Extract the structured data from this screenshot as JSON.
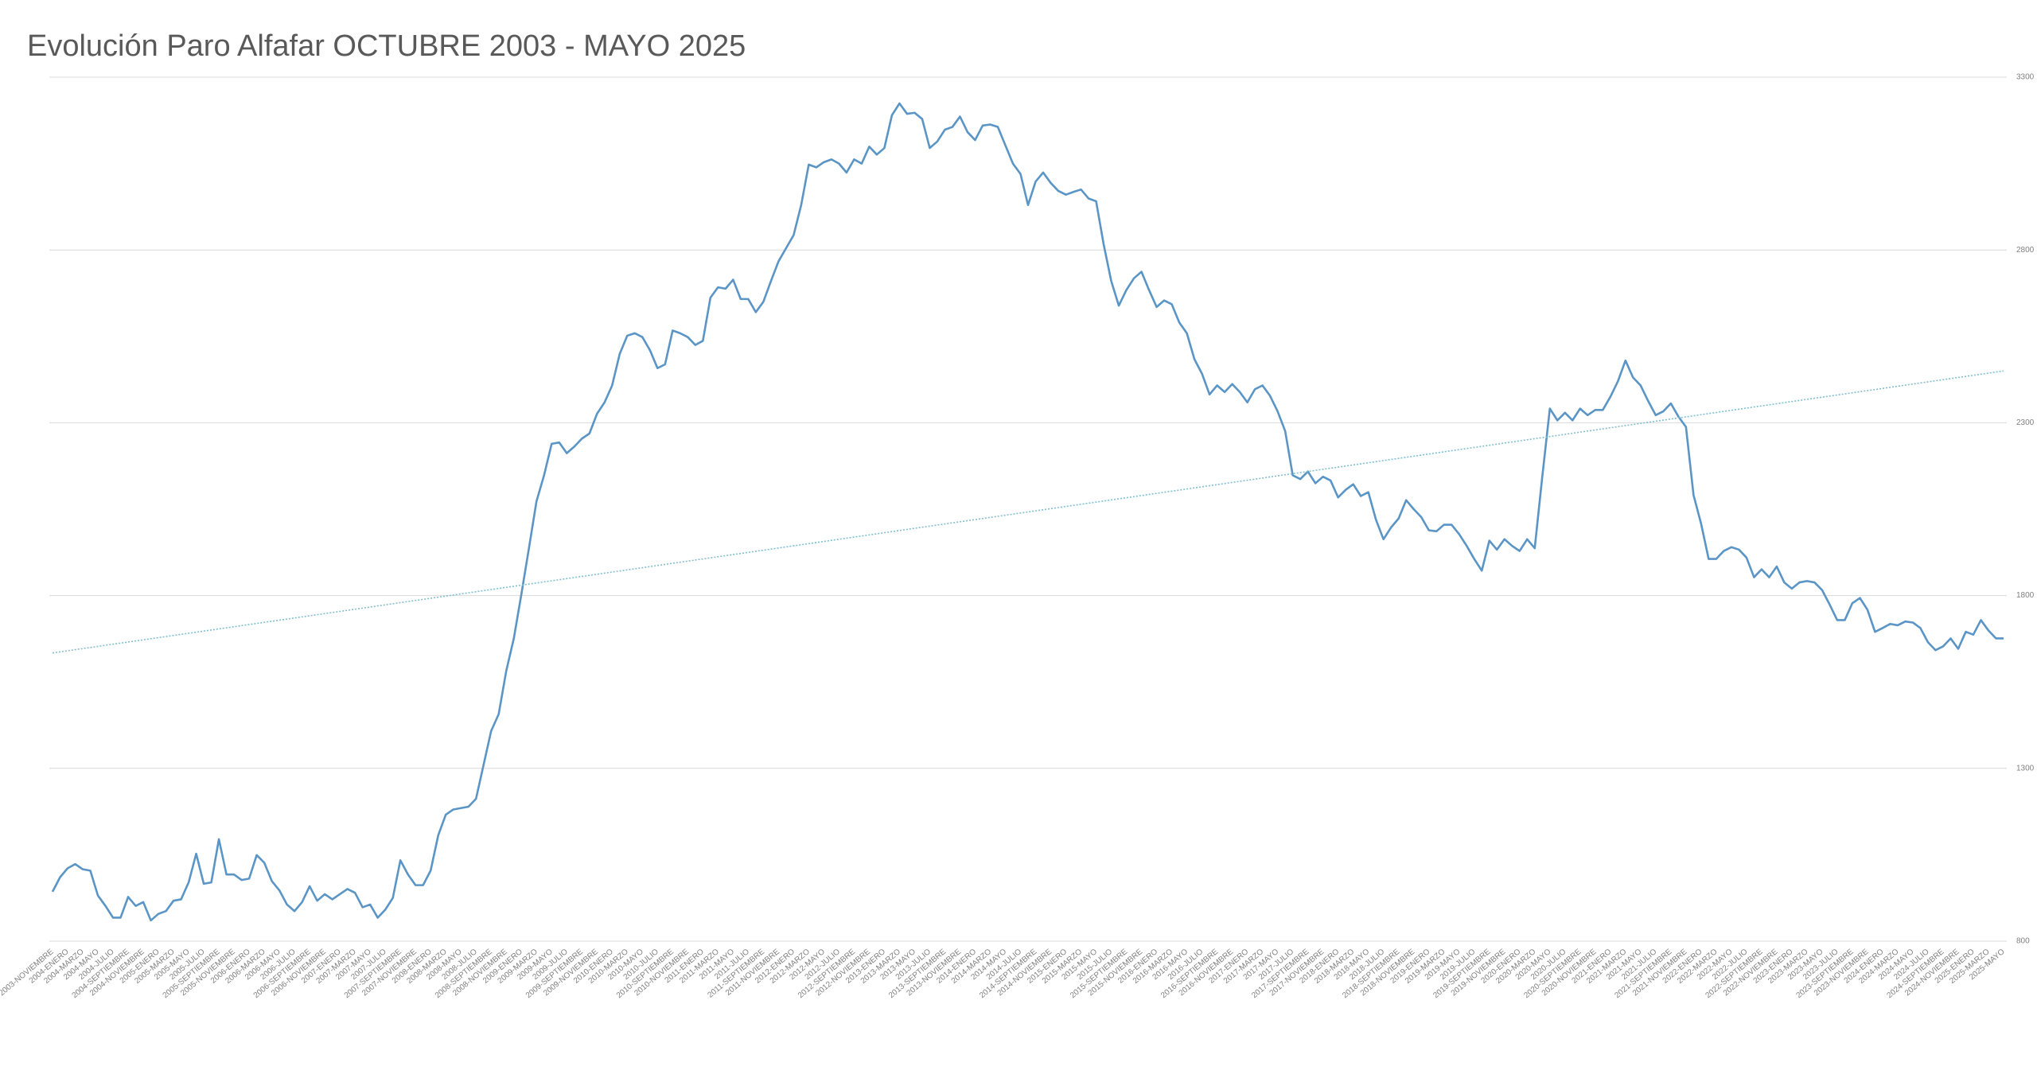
{
  "chart_data": {
    "type": "line",
    "title": "Evolución Paro Alfafar OCTUBRE 2003 - MAYO 2025",
    "categories": [
      "2003-NOVIEMBRE",
      null,
      "2004-ENERO",
      null,
      "2004-MARZO",
      null,
      "2004-MAYO",
      null,
      "2004-JULIO",
      null,
      "2004-SEPTIEMBRE",
      null,
      "2004-NOVIEMBRE",
      null,
      "2005-ENERO",
      null,
      "2005-MARZO",
      null,
      "2005-MAYO",
      null,
      "2005-JULIO",
      null,
      "2005-SEPTIEMBRE",
      null,
      "2005-NOVIEMBRE",
      null,
      "2006-ENERO",
      null,
      "2006-MARZO",
      null,
      "2006-MAYO",
      null,
      "2006-JULIO",
      null,
      "2006-SEPTIEMBRE",
      null,
      "2006-NOVIEMBRE",
      null,
      "2007-ENERO",
      null,
      "2007-MARZO",
      null,
      "2007-MAYO",
      null,
      "2007-JULIO",
      null,
      "2007-SEPTIEMBRE",
      null,
      "2007-NOVIEMBRE",
      null,
      "2008-ENERO",
      null,
      "2008-MARZO",
      null,
      "2008-MAYO",
      null,
      "2008-JULIO",
      null,
      "2008-SEPTIEMBRE",
      null,
      "2008-NOVIEMBRE",
      null,
      "2009-ENERO",
      null,
      "2009-MARZO",
      null,
      "2009-MAYO",
      null,
      "2009-JULIO",
      null,
      "2009-SEPTIEMBRE",
      null,
      "2009-NOVIEMBRE",
      null,
      "2010-ENERO",
      null,
      "2010-MARZO",
      null,
      "2010-MAYO",
      null,
      "2010-JULIO",
      null,
      "2010-SEPTIEMBRE",
      null,
      "2010-NOVIEMBRE",
      null,
      "2011-ENERO",
      null,
      "2011-MARZO",
      null,
      "2011-MAYO",
      null,
      "2011-JULIO",
      null,
      "2011-SEPTIEMBRE",
      null,
      "2011-NOVIEMBRE",
      null,
      "2012-ENERO",
      null,
      "2012-MARZO",
      null,
      "2012-MAYO",
      null,
      "2012-JULIO",
      null,
      "2012-SEPTIEMBRE",
      null,
      "2012-NOVIEMBRE",
      null,
      "2013-ENERO",
      null,
      "2013-MARZO",
      null,
      "2013-MAYO",
      null,
      "2013-JULIO",
      null,
      "2013-SEPTIEMBRE",
      null,
      "2013-NOVIEMBRE",
      null,
      "2014-ENERO",
      null,
      "2014-MARZO",
      null,
      "2014-MAYO",
      null,
      "2014-JULIO",
      null,
      "2014-SEPTIEMBRE",
      null,
      "2014-NOVIEMBRE",
      null,
      "2015-ENERO",
      null,
      "2015-MARZO",
      null,
      "2015-MAYO",
      null,
      "2015-JULIO",
      null,
      "2015-SEPTIEMBRE",
      null,
      "2015-NOVIEMBRE",
      null,
      "2016-ENERO",
      null,
      "2016-MARZO",
      null,
      "2016-MAYO",
      null,
      "2016-JULIO",
      null,
      "2016-SEPTIEMBRE",
      null,
      "2016-NOVIEMBRE",
      null,
      "2017-ENERO",
      null,
      "2017-MARZO",
      null,
      "2017-MAYO",
      null,
      "2017-JULIO",
      null,
      "2017-SEPTIEMBRE",
      null,
      "2017-NOVIEMBRE",
      null,
      "2018-ENERO",
      null,
      "2018-MARZO",
      null,
      "2018-MAYO",
      null,
      "2018-JULIO",
      null,
      "2018-SEPTIEMBRE",
      null,
      "2018-NOVIEMBRE",
      null,
      "2019-ENERO",
      null,
      "2019-MARZO",
      null,
      "2019-MAYO",
      null,
      "2019-JULIO",
      null,
      "2019-SEPTIEMBRE",
      null,
      "2019-NOVIEMBRE",
      null,
      "2020-ENERO",
      null,
      "2020-MARZO",
      null,
      "2020-MAYO",
      null,
      "2020-JULIO",
      null,
      "2020-SEPTIEMBRE",
      null,
      "2020-NOVIEMBRE",
      null,
      "2021-ENERO",
      null,
      "2021-MARZO",
      null,
      "2021-MAYO",
      null,
      "2021-JULIO",
      null,
      "2021-SEPTIEMBRE",
      null,
      "2021-NOVIEMBRE",
      null,
      "2022-ENERO",
      null,
      "2022-MARZO",
      null,
      "2022-MAYO",
      null,
      "2022-JULIO",
      null,
      "2022-SEPTIEMBRE",
      null,
      "2022-NOVIEMBRE",
      null,
      "2023-ENERO",
      null,
      "2023-MARZO",
      null,
      "2023-MAYO",
      null,
      "2023-JULIO",
      null,
      "2023-SEPTIEMBRE",
      null,
      "2023-NOVIEMBRE",
      null,
      "2024-ENERO",
      null,
      "2024-MARZO",
      null,
      "2024-MAYO",
      null,
      "2024-JULIO",
      null,
      "2024-SEPTIEMBRE",
      null,
      "2024-NOVIEMBRE",
      null,
      "2025-ENERO",
      null,
      "2025-MARZO",
      null,
      "2025-MAYO"
    ],
    "series": [
      {
        "color": "#5a95c6",
        "values": [
          943,
          985,
          1011,
          1023,
          1008,
          1004,
          932,
          902,
          868,
          868,
          928,
          902,
          913,
          860,
          879,
          887,
          917,
          921,
          970,
          1053,
          966,
          970,
          1095,
          993,
          993,
          977,
          981,
          1049,
          1027,
          974,
          947,
          906,
          887,
          913,
          959,
          917,
          936,
          921,
          936,
          951,
          940,
          898,
          906,
          868,
          891,
          925,
          1034,
          993,
          962,
          962,
          1004,
          1106,
          1166,
          1181,
          1185,
          1189,
          1212,
          1310,
          1408,
          1457,
          1582,
          1676,
          1804,
          1937,
          2073,
          2148,
          2239,
          2243,
          2212,
          2231,
          2254,
          2269,
          2326,
          2359,
          2408,
          2499,
          2552,
          2559,
          2548,
          2510,
          2458,
          2469,
          2567,
          2559,
          2548,
          2525,
          2537,
          2662,
          2692,
          2688,
          2714,
          2658,
          2658,
          2620,
          2650,
          2710,
          2767,
          2805,
          2843,
          2930,
          3047,
          3039,
          3054,
          3062,
          3050,
          3024,
          3062,
          3050,
          3099,
          3076,
          3095,
          3190,
          3224,
          3194,
          3197,
          3179,
          3095,
          3114,
          3148,
          3156,
          3186,
          3141,
          3118,
          3160,
          3163,
          3156,
          3103,
          3050,
          3020,
          2930,
          2998,
          3024,
          2994,
          2971,
          2960,
          2968,
          2975,
          2949,
          2941,
          2816,
          2710,
          2639,
          2684,
          2718,
          2737,
          2684,
          2635,
          2654,
          2643,
          2590,
          2559,
          2484,
          2442,
          2382,
          2408,
          2389,
          2412,
          2389,
          2359,
          2397,
          2408,
          2378,
          2333,
          2276,
          2148,
          2137,
          2159,
          2125,
          2144,
          2133,
          2084,
          2106,
          2122,
          2088,
          2099,
          2020,
          1963,
          1997,
          2023,
          2076,
          2050,
          2027,
          1989,
          1986,
          2005,
          2005,
          1978,
          1944,
          1906,
          1872,
          1959,
          1933,
          1963,
          1944,
          1929,
          1963,
          1937,
          2144,
          2341,
          2307,
          2329,
          2307,
          2341,
          2322,
          2337,
          2337,
          2375,
          2420,
          2480,
          2431,
          2408,
          2363,
          2322,
          2333,
          2356,
          2318,
          2288,
          2091,
          2008,
          1906,
          1906,
          1929,
          1940,
          1933,
          1910,
          1853,
          1876,
          1853,
          1884,
          1838,
          1820,
          1838,
          1842,
          1838,
          1816,
          1774,
          1729,
          1729,
          1778,
          1793,
          1759,
          1695,
          1706,
          1718,
          1714,
          1725,
          1722,
          1706,
          1665,
          1642,
          1653,
          1676,
          1646,
          1695,
          1687,
          1729,
          1699,
          1676,
          1676
        ]
      }
    ],
    "trendline": {
      "values": [
        1634,
        2450
      ],
      "color": "#7fbfcf"
    },
    "ylim": [
      800,
      3300
    ],
    "yticks": [
      800,
      1300,
      1800,
      2300,
      2800,
      3300
    ],
    "grid": true,
    "y_axis_side": "right"
  }
}
